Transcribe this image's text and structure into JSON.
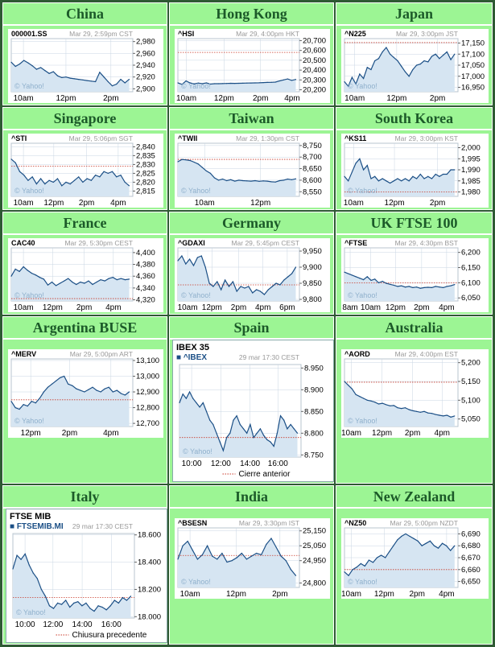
{
  "colors": {
    "panel": "#9cf594",
    "title": "#1c5a29",
    "line": "#1b4f86",
    "fill": "#d6e5f2",
    "ref": "#c93a2a",
    "grid": "#c9d6e3"
  },
  "panels": [
    {
      "title": "China",
      "symbol": "000001.SS",
      "meta": "Mar 29, 2:59pm CST",
      "watermark": "© Yahoo!"
    },
    {
      "title": "Hong Kong",
      "symbol": "^HSI",
      "meta": "Mar 29, 4:00pm HKT",
      "watermark": "© Yahoo!"
    },
    {
      "title": "Japan",
      "symbol": "^N225",
      "meta": "Mar 29, 3:00pm JST",
      "watermark": "© Yahoo!"
    },
    {
      "title": "Singapore",
      "symbol": "^STI",
      "meta": "Mar 29, 5:06pm SGT",
      "watermark": "© Yahoo!"
    },
    {
      "title": "Taiwan",
      "symbol": "^TWII",
      "meta": "Mar 29, 1:30pm CST",
      "watermark": "© Yahoo!"
    },
    {
      "title": "South Korea",
      "symbol": "^KS11",
      "meta": "Mar 29, 3:00pm KST",
      "watermark": "© Yahoo!"
    },
    {
      "title": "France",
      "symbol": "CAC40",
      "meta": "Mar 29, 5:30pm CEST",
      "watermark": "© Yahoo!"
    },
    {
      "title": "Germany",
      "symbol": "^GDAXI",
      "meta": "Mar 29, 5:45pm CEST",
      "watermark": "© Yahoo!"
    },
    {
      "title": "UK FTSE 100",
      "symbol": "^FTSE",
      "meta": "Mar 29, 4:30pm BST",
      "watermark": "© Yahoo!"
    },
    {
      "title": "Argentina BUSE",
      "symbol": "^MERV",
      "meta": "Mar 29, 5:00pm ART",
      "watermark": "© Yahoo!"
    },
    {
      "title": "Spain",
      "index_name": "IBEX 35",
      "symbol": "■ ^IBEX",
      "meta": "29 mar 17:30 CEST",
      "watermark": "© Yahoo!",
      "legend": "Cierre anterior"
    },
    {
      "title": "Australia",
      "symbol": "^AORD",
      "meta": "Mar 29, 4:00pm EST",
      "watermark": "© Yahoo!"
    },
    {
      "title": "Italy",
      "index_name": "FTSE MIB",
      "symbol": "■ FTSEMIB.MI",
      "meta": "29 mar 17:30 CEST",
      "watermark": "© Yahoo!",
      "legend": "Chiusura precedente"
    },
    {
      "title": "India",
      "symbol": "^BSESN",
      "meta": "Mar 29, 3:30pm IST",
      "watermark": "© Yahoo!"
    },
    {
      "title": "New Zealand",
      "symbol": "^NZ50",
      "meta": "Mar 29, 5:00pm NZDT",
      "watermark": "© Yahoo!"
    }
  ],
  "chart_data": [
    {
      "type": "area",
      "symbol": "000001.SS",
      "ylim": [
        2895,
        2985
      ],
      "y_ticks": [
        "2,980",
        "2,960",
        "2,940",
        "2,920",
        "2,900"
      ],
      "y_tick_values": [
        2980,
        2960,
        2940,
        2920,
        2900
      ],
      "x_ticks": [
        "10am",
        "12pm",
        "2pm"
      ],
      "x_tick_pos": [
        0.1,
        0.45,
        0.82
      ],
      "prev_close": null,
      "values": [
        2945,
        2938,
        2942,
        2948,
        2944,
        2939,
        2933,
        2936,
        2931,
        2926,
        2929,
        2922,
        2919,
        2920,
        2918,
        2917,
        2916,
        2915,
        2914,
        2913,
        2912,
        2928,
        2920,
        2912,
        2905,
        2908,
        2916,
        2910,
        2916
      ]
    },
    {
      "type": "area",
      "symbol": "^HSI",
      "ylim": [
        20180,
        20720
      ],
      "y_ticks": [
        "20,700",
        "20,600",
        "20,500",
        "20,400",
        "20,300",
        "20,200"
      ],
      "y_tick_values": [
        20700,
        20600,
        20500,
        20400,
        20300,
        20200
      ],
      "x_ticks": [
        "10am",
        "12pm",
        "2pm",
        "4pm"
      ],
      "x_tick_pos": [
        0.07,
        0.38,
        0.68,
        0.94
      ],
      "prev_close": 20580,
      "values": [
        20270,
        20255,
        20290,
        20270,
        20260,
        20268,
        20262,
        20270,
        20258,
        20262,
        20262,
        20263,
        20264,
        20266,
        20265,
        20266,
        20267,
        20268,
        20269,
        20270,
        20271,
        20273,
        20275,
        20276,
        20278,
        20290,
        20300,
        20310,
        20295,
        20305
      ]
    },
    {
      "type": "area",
      "symbol": "^N225",
      "ylim": [
        16930,
        17170
      ],
      "y_ticks": [
        "17,150",
        "17,100",
        "17,050",
        "17,000",
        "16,950"
      ],
      "y_tick_values": [
        17150,
        17100,
        17050,
        17000,
        16950
      ],
      "x_ticks": [
        "10am",
        "12pm",
        "2pm"
      ],
      "x_tick_pos": [
        0.09,
        0.46,
        0.82
      ],
      "prev_close": 17152,
      "values": [
        16975,
        16955,
        16995,
        16965,
        17010,
        16990,
        17040,
        17030,
        17070,
        17080,
        17110,
        17130,
        17100,
        17085,
        17070,
        17045,
        17020,
        17000,
        17030,
        17050,
        17055,
        17070,
        17065,
        17090,
        17100,
        17080,
        17095,
        17110,
        17075,
        17100
      ]
    },
    {
      "type": "area",
      "symbol": "^STI",
      "ylim": [
        2812,
        2842
      ],
      "y_ticks": [
        "2,840",
        "2,835",
        "2,830",
        "2,825",
        "2,820",
        "2,815"
      ],
      "y_tick_values": [
        2840,
        2835,
        2830,
        2825,
        2820,
        2815
      ],
      "x_ticks": [
        "10am",
        "12pm",
        "2pm",
        "4pm"
      ],
      "x_tick_pos": [
        0.1,
        0.35,
        0.62,
        0.88
      ],
      "prev_close": 2829,
      "values": [
        2833,
        2831,
        2826,
        2824,
        2821,
        2823,
        2819,
        2822,
        2819,
        2821,
        2820,
        2822,
        2818,
        2820,
        2819,
        2821,
        2823,
        2820,
        2822,
        2821,
        2824,
        2823,
        2826,
        2825,
        2826,
        2823,
        2824,
        2820,
        2818
      ]
    },
    {
      "type": "area",
      "symbol": "^TWII",
      "ylim": [
        8530,
        8760
      ],
      "y_ticks": [
        "8,750",
        "8,700",
        "8,650",
        "8,600",
        "8,550"
      ],
      "y_tick_values": [
        8750,
        8700,
        8650,
        8600,
        8550
      ],
      "x_ticks": [
        "10am",
        "12pm"
      ],
      "x_tick_pos": [
        0.22,
        0.68
      ],
      "prev_close": 8690,
      "values": [
        8680,
        8690,
        8688,
        8685,
        8678,
        8670,
        8655,
        8640,
        8630,
        8610,
        8600,
        8605,
        8598,
        8602,
        8596,
        8600,
        8598,
        8597,
        8596,
        8598,
        8595,
        8597,
        8596,
        8593,
        8592,
        8598,
        8600,
        8605,
        8602,
        8606
      ]
    },
    {
      "type": "area",
      "symbol": "^KS11",
      "ylim": [
        1978,
        2002
      ],
      "y_ticks": [
        "2,000",
        "1,995",
        "1,990",
        "1,985",
        "1,980"
      ],
      "y_tick_values": [
        2000,
        1995,
        1990,
        1985,
        1980
      ],
      "x_ticks": [
        "10am",
        "12pm",
        "2pm"
      ],
      "x_tick_pos": [
        0.08,
        0.44,
        0.82
      ],
      "prev_close": 1980,
      "values": [
        1987,
        1985,
        1989,
        1993,
        1995,
        1990,
        1992,
        1986,
        1987,
        1985,
        1986,
        1985,
        1984,
        1985,
        1986,
        1985,
        1986,
        1985,
        1987,
        1986,
        1988,
        1986,
        1987,
        1986,
        1988,
        1987,
        1988,
        1988,
        1990,
        1990
      ]
    },
    {
      "type": "area",
      "symbol": "CAC40",
      "ylim": [
        4318,
        4408
      ],
      "y_ticks": [
        "4,400",
        "4,380",
        "4,360",
        "4,340",
        "4,320"
      ],
      "y_tick_values": [
        4400,
        4380,
        4360,
        4340,
        4320
      ],
      "x_ticks": [
        "10am",
        "12pm",
        "2pm",
        "4pm"
      ],
      "x_tick_pos": [
        0.1,
        0.34,
        0.6,
        0.84
      ],
      "prev_close": 4322,
      "values": [
        4360,
        4372,
        4368,
        4376,
        4370,
        4365,
        4362,
        4358,
        4355,
        4345,
        4350,
        4344,
        4348,
        4352,
        4356,
        4350,
        4346,
        4350,
        4348,
        4352,
        4346,
        4350,
        4354,
        4352,
        4356,
        4358,
        4354,
        4356,
        4354,
        4355
      ]
    },
    {
      "type": "area",
      "symbol": "^GDAXI",
      "ylim": [
        9795,
        9960
      ],
      "y_ticks": [
        "9,950",
        "9,900",
        "9,850",
        "9,800"
      ],
      "y_tick_values": [
        9950,
        9900,
        9850,
        9800
      ],
      "x_ticks": [
        "10am",
        "12pm",
        "2pm",
        "4pm",
        "6pm"
      ],
      "x_tick_pos": [
        0.08,
        0.28,
        0.5,
        0.7,
        0.9
      ],
      "prev_close": 9845,
      "values": [
        9920,
        9935,
        9910,
        9925,
        9905,
        9930,
        9935,
        9900,
        9850,
        9840,
        9855,
        9830,
        9860,
        9840,
        9855,
        9825,
        9840,
        9835,
        9840,
        9820,
        9830,
        9825,
        9815,
        9830,
        9840,
        9850,
        9845,
        9860,
        9870,
        9880,
        9900
      ]
    },
    {
      "type": "area",
      "symbol": "^FTSE",
      "ylim": [
        6040,
        6215
      ],
      "y_ticks": [
        "6,200",
        "6,150",
        "6,100",
        "6,050"
      ],
      "y_tick_values": [
        6200,
        6150,
        6100,
        6050
      ],
      "x_ticks": [
        "8am",
        "10am",
        "12pm",
        "2pm",
        "4pm"
      ],
      "x_tick_pos": [
        0.05,
        0.23,
        0.45,
        0.68,
        0.9
      ],
      "prev_close": 6100,
      "values": [
        6135,
        6130,
        6125,
        6120,
        6115,
        6110,
        6120,
        6108,
        6112,
        6100,
        6105,
        6098,
        6095,
        6092,
        6088,
        6090,
        6086,
        6088,
        6084,
        6086,
        6082,
        6084,
        6085,
        6084,
        6088,
        6086,
        6084,
        6088,
        6090,
        6094
      ]
    },
    {
      "type": "area",
      "symbol": "^MERV",
      "ylim": [
        12680,
        13110
      ],
      "y_ticks": [
        "13,100",
        "13,000",
        "12,900",
        "12,800",
        "12,700"
      ],
      "y_tick_values": [
        13100,
        13000,
        12900,
        12800,
        12700
      ],
      "x_ticks": [
        "12pm",
        "2pm",
        "4pm"
      ],
      "x_tick_pos": [
        0.16,
        0.48,
        0.82
      ],
      "prev_close": 12850,
      "values": [
        12840,
        12800,
        12790,
        12820,
        12810,
        12840,
        12830,
        12860,
        12900,
        12930,
        12950,
        12970,
        12990,
        13000,
        12950,
        12940,
        12920,
        12910,
        12900,
        12915,
        12930,
        12910,
        12900,
        12920,
        12930,
        12900,
        12910,
        12890,
        12880,
        12900
      ]
    },
    {
      "type": "area",
      "symbol": "^IBEX",
      "ylim": [
        8745,
        8958
      ],
      "y_ticks": [
        "8.950",
        "8.900",
        "8.850",
        "8.800",
        "8.750"
      ],
      "y_tick_values": [
        8950,
        8900,
        8850,
        8800,
        8750
      ],
      "x_ticks": [
        "10:00",
        "12:00",
        "14:00",
        "16:00"
      ],
      "x_tick_pos": [
        0.1,
        0.34,
        0.58,
        0.81
      ],
      "prev_close": 8790,
      "values": [
        8870,
        8890,
        8880,
        8895,
        8880,
        8870,
        8860,
        8870,
        8850,
        8830,
        8820,
        8800,
        8780,
        8760,
        8790,
        8800,
        8830,
        8840,
        8820,
        8810,
        8800,
        8820,
        8790,
        8800,
        8810,
        8795,
        8785,
        8780,
        8770,
        8800,
        8840,
        8830,
        8810,
        8820,
        8810,
        8800
      ]
    },
    {
      "type": "area",
      "symbol": "^AORD",
      "ylim": [
        5030,
        5210
      ],
      "y_ticks": [
        "5,200",
        "5,150",
        "5,100",
        "5,050"
      ],
      "y_tick_values": [
        5200,
        5150,
        5100,
        5050
      ],
      "x_ticks": [
        "10am",
        "12pm",
        "2pm",
        "4pm"
      ],
      "x_tick_pos": [
        0.06,
        0.33,
        0.6,
        0.86
      ],
      "prev_close": 5148,
      "values": [
        5150,
        5140,
        5130,
        5115,
        5110,
        5105,
        5100,
        5098,
        5095,
        5090,
        5092,
        5088,
        5085,
        5086,
        5080,
        5078,
        5080,
        5075,
        5072,
        5070,
        5068,
        5070,
        5066,
        5065,
        5062,
        5060,
        5058,
        5060,
        5055,
        5058
      ]
    },
    {
      "type": "area",
      "symbol": "FTSEMIB.MI",
      "ylim": [
        17990,
        18610
      ],
      "y_ticks": [
        "18.600",
        "18.400",
        "18.200",
        "18.000"
      ],
      "y_tick_values": [
        18600,
        18400,
        18200,
        18000
      ],
      "x_ticks": [
        "10:00",
        "12:00",
        "14:00",
        "16:00"
      ],
      "x_tick_pos": [
        0.1,
        0.33,
        0.57,
        0.81
      ],
      "prev_close": 18140,
      "values": [
        18350,
        18450,
        18420,
        18460,
        18380,
        18320,
        18280,
        18200,
        18150,
        18080,
        18060,
        18100,
        18090,
        18120,
        18070,
        18100,
        18110,
        18080,
        18100,
        18060,
        18040,
        18080,
        18070,
        18050,
        18080,
        18120,
        18100,
        18140,
        18120,
        18150
      ]
    },
    {
      "type": "area",
      "symbol": "^BSESN",
      "ylim": [
        24770,
        25170
      ],
      "y_ticks": [
        "25,150",
        "25,050",
        "24,950",
        "24,800"
      ],
      "y_tick_values": [
        25150,
        25050,
        24950,
        24800
      ],
      "x_ticks": [
        "10am",
        "12pm",
        "2pm"
      ],
      "x_tick_pos": [
        0.1,
        0.48,
        0.84
      ],
      "prev_close": 24985,
      "values": [
        24960,
        25050,
        25080,
        25020,
        24960,
        24990,
        25050,
        24980,
        24960,
        25000,
        24940,
        24950,
        24970,
        25000,
        24960,
        24980,
        25000,
        24990,
        25060,
        25100,
        25040,
        24980,
        24950,
        24890,
        24850
      ]
    },
    {
      "type": "area",
      "symbol": "^NZ50",
      "ylim": [
        6645,
        6695
      ],
      "y_ticks": [
        "6,690",
        "6,680",
        "6,670",
        "6,660",
        "6,650"
      ],
      "y_tick_values": [
        6690,
        6680,
        6670,
        6660,
        6650
      ],
      "x_ticks": [
        "10am",
        "12pm",
        "2pm",
        "4pm"
      ],
      "x_tick_pos": [
        0.06,
        0.35,
        0.64,
        0.9
      ],
      "prev_close": 6660,
      "values": [
        6658,
        6655,
        6660,
        6662,
        6665,
        6663,
        6668,
        6666,
        6670,
        6672,
        6670,
        6675,
        6680,
        6685,
        6688,
        6690,
        6688,
        6686,
        6684,
        6680,
        6682,
        6684,
        6680,
        6678,
        6682,
        6680,
        6676,
        6680
      ]
    }
  ]
}
